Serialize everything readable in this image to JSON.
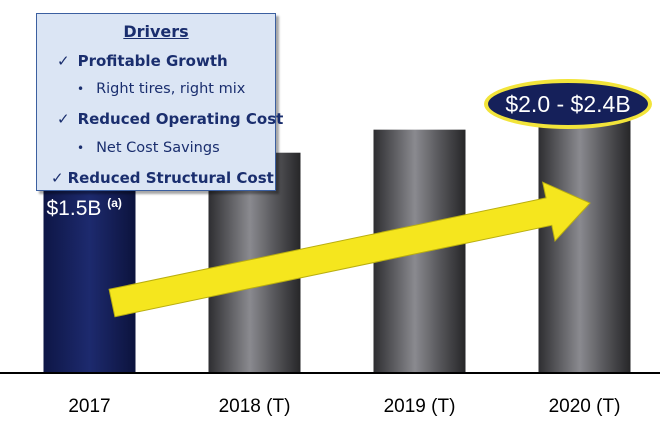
{
  "chart_data": {
    "type": "bar",
    "categories": [
      "2017",
      "2018 (T)",
      "2019 (T)",
      "2020 (T)"
    ],
    "values": [
      1.5,
      1.72,
      1.9,
      2.2
    ],
    "unit": "$B",
    "ylim": [
      0,
      2.6
    ],
    "colors": {
      "actual": "#131d55",
      "target": "#3a3a3d",
      "arrow": "#f5e61e",
      "axis": "#000000"
    },
    "data_labels": [
      {
        "category": "2017",
        "text": "$1.5B",
        "superscript": "(a)"
      },
      {
        "category": "2020 (T)",
        "text": "$2.0 - $2.4B"
      }
    ],
    "legend": "none",
    "grid": false
  },
  "drivers": {
    "title": "Drivers",
    "items": [
      {
        "type": "main",
        "text": "Profitable Growth",
        "mark": "✓"
      },
      {
        "type": "sub",
        "text": "Right tires, right mix",
        "mark": "•"
      },
      {
        "type": "main",
        "text": "Reduced Operating Cost",
        "mark": "✓"
      },
      {
        "type": "sub",
        "text": "Net Cost Savings",
        "mark": "•"
      },
      {
        "type": "main",
        "text": "Reduced Structural Cost",
        "mark": "✓"
      }
    ]
  }
}
